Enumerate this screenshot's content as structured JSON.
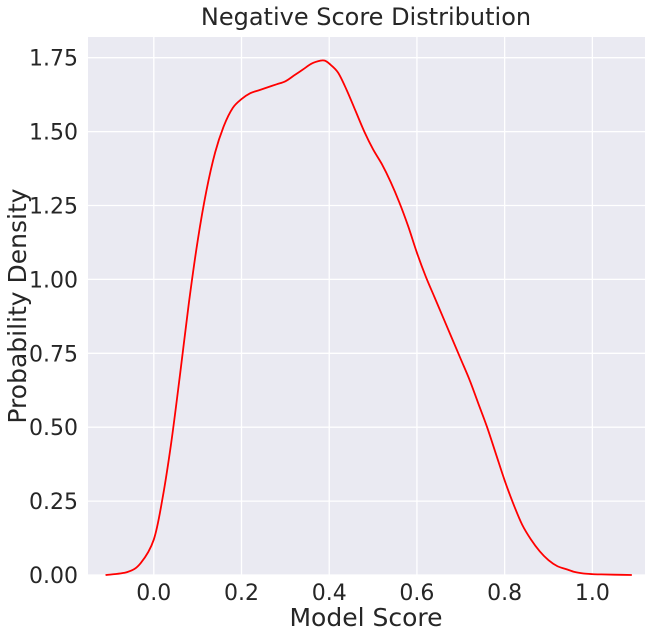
{
  "chart_data": {
    "type": "line",
    "title": "Negative Score Distribution",
    "xlabel": "Model Score",
    "ylabel": "Probability Density",
    "xlim": [
      -0.15,
      1.12
    ],
    "ylim": [
      0,
      1.82
    ],
    "xticks": [
      0.0,
      0.2,
      0.4,
      0.6,
      0.8,
      1.0
    ],
    "xtick_labels": [
      "0.0",
      "0.2",
      "0.4",
      "0.6",
      "0.8",
      "1.0"
    ],
    "yticks": [
      0,
      0.25,
      0.5,
      0.75,
      1.0,
      1.25,
      1.5,
      1.75
    ],
    "ytick_labels": [
      "0.00",
      "0.25",
      "0.50",
      "0.75",
      "1.00",
      "1.25",
      "1.50",
      "1.75"
    ],
    "grid": true,
    "series": [
      {
        "color": "#ff0000",
        "x": [
          -0.11,
          -0.06,
          -0.03,
          0.0,
          0.02,
          0.04,
          0.06,
          0.08,
          0.1,
          0.12,
          0.14,
          0.16,
          0.18,
          0.2,
          0.22,
          0.24,
          0.26,
          0.28,
          0.3,
          0.32,
          0.34,
          0.36,
          0.38,
          0.39,
          0.4,
          0.42,
          0.44,
          0.46,
          0.48,
          0.5,
          0.52,
          0.54,
          0.56,
          0.58,
          0.6,
          0.62,
          0.64,
          0.66,
          0.68,
          0.7,
          0.72,
          0.74,
          0.76,
          0.78,
          0.8,
          0.82,
          0.84,
          0.86,
          0.88,
          0.9,
          0.92,
          0.94,
          0.96,
          0.98,
          1.0,
          1.02,
          1.05,
          1.09
        ],
        "y": [
          0.0,
          0.01,
          0.04,
          0.12,
          0.26,
          0.45,
          0.68,
          0.92,
          1.13,
          1.3,
          1.43,
          1.52,
          1.58,
          1.61,
          1.63,
          1.64,
          1.65,
          1.66,
          1.67,
          1.69,
          1.71,
          1.73,
          1.74,
          1.74,
          1.73,
          1.7,
          1.64,
          1.57,
          1.5,
          1.44,
          1.39,
          1.33,
          1.26,
          1.18,
          1.09,
          1.01,
          0.94,
          0.87,
          0.8,
          0.73,
          0.66,
          0.58,
          0.5,
          0.41,
          0.32,
          0.24,
          0.17,
          0.12,
          0.08,
          0.05,
          0.03,
          0.02,
          0.01,
          0.005,
          0.003,
          0.002,
          0.001,
          0.0
        ]
      }
    ]
  }
}
